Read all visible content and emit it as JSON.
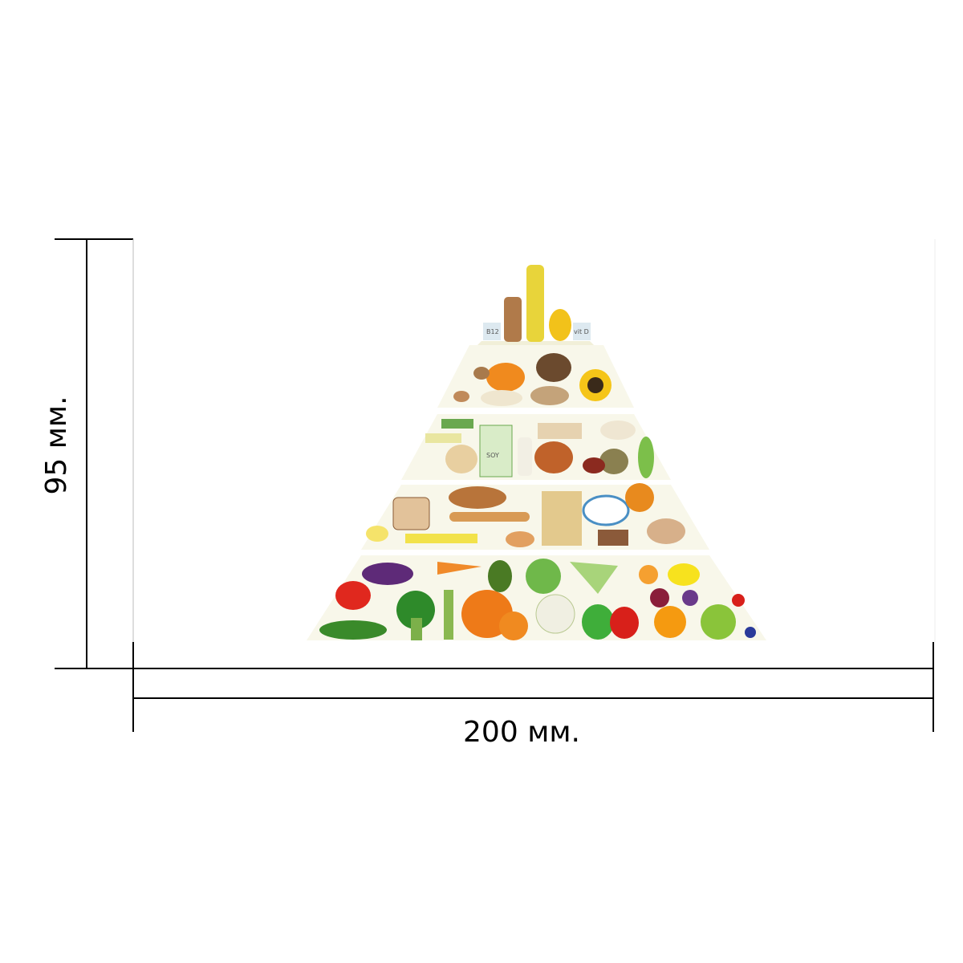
{
  "dimensions": {
    "height": "95 мм.",
    "width": "200 мм."
  },
  "labels": {
    "b12": "B12",
    "vitd": "vit D",
    "soy": "SOY"
  }
}
